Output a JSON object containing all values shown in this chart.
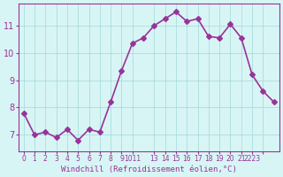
{
  "x": [
    0,
    1,
    2,
    3,
    4,
    5,
    6,
    7,
    8,
    9,
    10,
    11,
    12,
    13,
    14,
    15,
    16,
    17,
    18,
    19,
    20,
    21,
    22,
    23
  ],
  "y": [
    7.8,
    7.0,
    7.1,
    6.9,
    7.2,
    6.8,
    7.2,
    7.1,
    8.2,
    9.35,
    10.35,
    10.55,
    11.0,
    11.25,
    11.5,
    11.15,
    11.25,
    10.6,
    10.55,
    11.05,
    10.55,
    9.2,
    8.6,
    8.2
  ],
  "line_color": "#993399",
  "marker": "D",
  "marker_size": 3,
  "bg_color": "#d8f5f5",
  "grid_color": "#aadddd",
  "xlabel": "Windchill (Refroidissement éolien,°C)",
  "xlabel_color": "#993399",
  "tick_color": "#993399",
  "ylim": [
    6.4,
    11.8
  ],
  "yticks": [
    7,
    8,
    9,
    10,
    11
  ],
  "tick_positions": [
    0,
    1,
    2,
    3,
    4,
    5,
    6,
    7,
    8,
    9,
    10,
    12,
    13,
    14,
    15,
    16,
    17,
    18,
    19,
    20,
    21,
    22
  ],
  "tick_labels": [
    "0",
    "1",
    "2",
    "3",
    "4",
    "5",
    "6",
    "7",
    "8",
    "9",
    "1011",
    "13",
    "14",
    "15",
    "16",
    "17",
    "18",
    "19",
    "20",
    "21",
    "2223",
    ""
  ],
  "line_width": 1.2
}
